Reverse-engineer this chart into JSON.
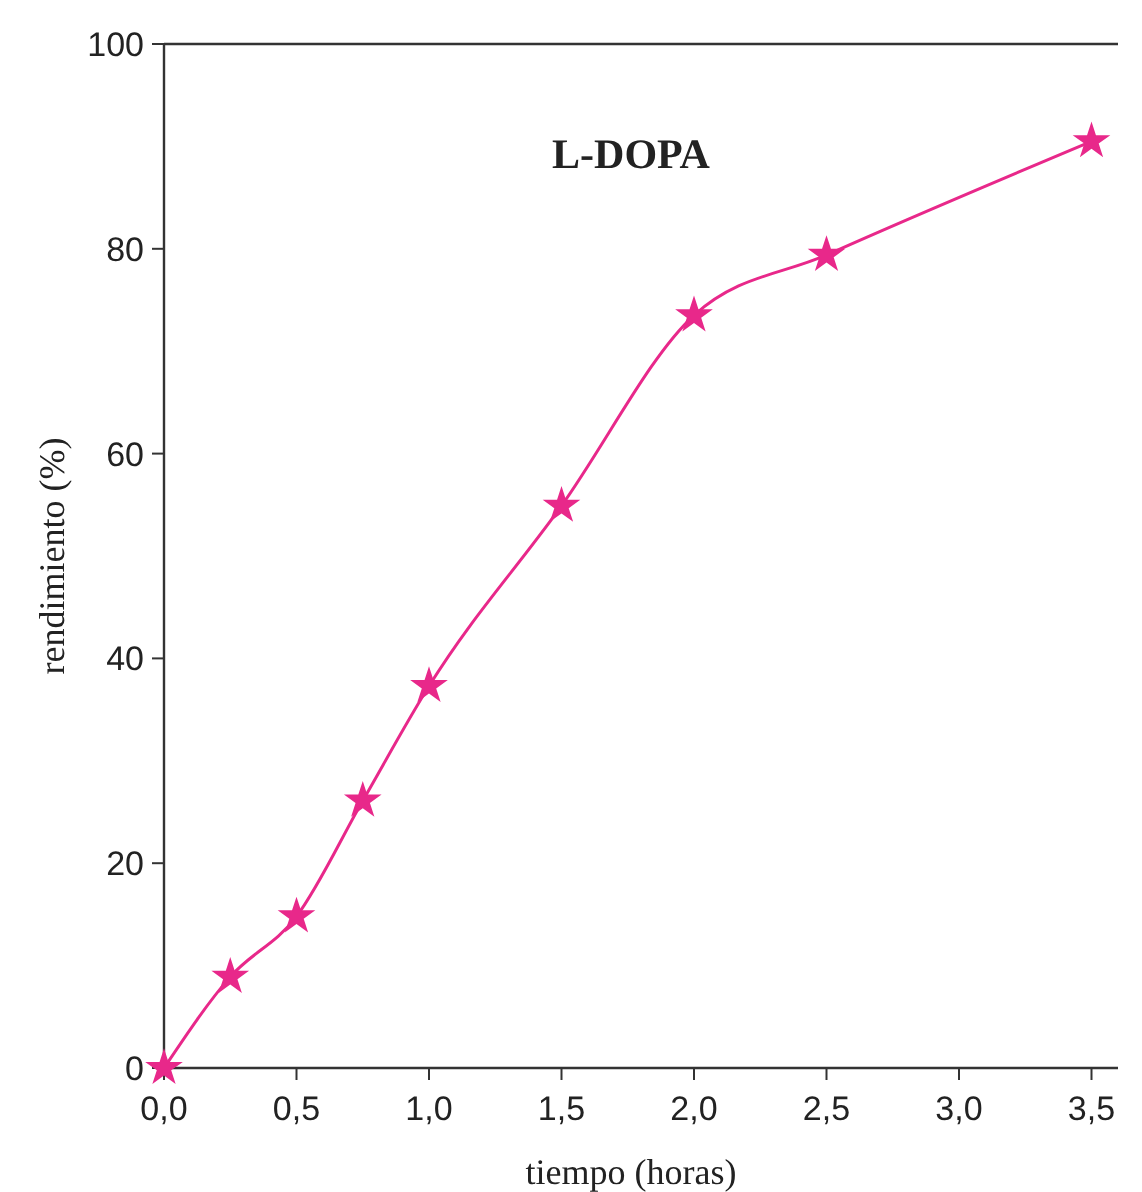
{
  "chart_data": {
    "type": "line",
    "title": "L-DOPA",
    "xlabel": "tiempo (horas)",
    "ylabel": "rendimiento (%)",
    "x": [
      0,
      0.25,
      0.5,
      0.75,
      1.0,
      1.5,
      2.0,
      2.5,
      3.5
    ],
    "series": [
      {
        "color": "#e8288a",
        "values": [
          0,
          8.9,
          14.8,
          26.1,
          37.3,
          54.9,
          73.5,
          79.4,
          90.5
        ]
      }
    ],
    "xlim": [
      0,
      3.6
    ],
    "xticks": [
      {
        "value": 0,
        "label": "0,0"
      },
      {
        "value": 0.5,
        "label": "0,5"
      },
      {
        "value": 1,
        "label": "1,0"
      },
      {
        "value": 1.5,
        "label": "1,5"
      },
      {
        "value": 2,
        "label": "2,0"
      },
      {
        "value": 2.5,
        "label": "2,5"
      },
      {
        "value": 3,
        "label": "3,0"
      },
      {
        "value": 3.5,
        "label": "3,5"
      }
    ],
    "ylim": [
      0,
      100
    ],
    "yticks": [
      0,
      20,
      40,
      60,
      80,
      100
    ],
    "grid": false,
    "marker": "star",
    "line_style": "solid"
  }
}
